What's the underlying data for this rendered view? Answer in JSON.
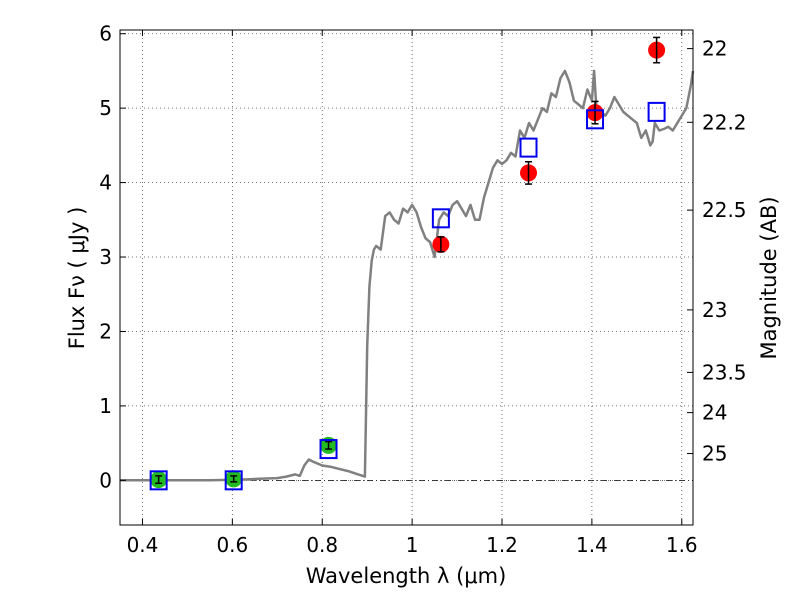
{
  "chart_data": {
    "type": "scatter",
    "xlabel": "Wavelength  λ (μm)",
    "ylabel": "Flux  Fν  ( μJy )",
    "right_ylabel": "Magnitude (AB)",
    "xlim": [
      0.35,
      1.625
    ],
    "ylim": [
      -0.6,
      6.05
    ],
    "grid": true,
    "x_ticks": [
      {
        "value": 0.4,
        "label": "0.4"
      },
      {
        "value": 0.6,
        "label": "0.6"
      },
      {
        "value": 0.8,
        "label": "0.8"
      },
      {
        "value": 1.0,
        "label": "1"
      },
      {
        "value": 1.2,
        "label": "1.2"
      },
      {
        "value": 1.4,
        "label": "1.4"
      },
      {
        "value": 1.6,
        "label": "1.6"
      }
    ],
    "y_ticks": [
      {
        "value": 0,
        "label": "0"
      },
      {
        "value": 1,
        "label": "1"
      },
      {
        "value": 2,
        "label": "2"
      },
      {
        "value": 3,
        "label": "3"
      },
      {
        "value": 4,
        "label": "4"
      },
      {
        "value": 5,
        "label": "5"
      },
      {
        "value": 6,
        "label": "6"
      }
    ],
    "right_ticks": [
      {
        "flux": 5.8,
        "label": "22"
      },
      {
        "flux": 4.81,
        "label": "22.2"
      },
      {
        "flux": 3.63,
        "label": "22.5"
      },
      {
        "flux": 2.29,
        "label": "23"
      },
      {
        "flux": 1.45,
        "label": "23.5"
      },
      {
        "flux": 0.91,
        "label": "24"
      },
      {
        "flux": 0.36,
        "label": "25"
      }
    ],
    "series": [
      {
        "kind": "line",
        "color": "#808080",
        "x": [
          0.35,
          0.45,
          0.55,
          0.62,
          0.66,
          0.7,
          0.72,
          0.74,
          0.75,
          0.76,
          0.77,
          0.78,
          0.8,
          0.82,
          0.84,
          0.86,
          0.88,
          0.895,
          0.9,
          0.905,
          0.91,
          0.915,
          0.92,
          0.93,
          0.94,
          0.95,
          0.96,
          0.97,
          0.98,
          0.99,
          1.0,
          1.01,
          1.02,
          1.03,
          1.04,
          1.05,
          1.06,
          1.07,
          1.08,
          1.09,
          1.1,
          1.11,
          1.12,
          1.13,
          1.14,
          1.15,
          1.16,
          1.17,
          1.18,
          1.19,
          1.2,
          1.21,
          1.22,
          1.23,
          1.24,
          1.25,
          1.26,
          1.27,
          1.28,
          1.29,
          1.3,
          1.31,
          1.32,
          1.33,
          1.34,
          1.35,
          1.36,
          1.37,
          1.38,
          1.39,
          1.4,
          1.405,
          1.41,
          1.42,
          1.43,
          1.44,
          1.45,
          1.46,
          1.47,
          1.48,
          1.49,
          1.5,
          1.51,
          1.52,
          1.53,
          1.535,
          1.54,
          1.55,
          1.56,
          1.57,
          1.58,
          1.59,
          1.6,
          1.61,
          1.62,
          1.625
        ],
        "y": [
          0.0,
          0.0,
          0.0,
          0.01,
          0.02,
          0.03,
          0.05,
          0.08,
          0.06,
          0.2,
          0.28,
          0.25,
          0.2,
          0.18,
          0.15,
          0.12,
          0.08,
          0.05,
          1.8,
          2.6,
          2.95,
          3.1,
          3.15,
          3.1,
          3.55,
          3.6,
          3.5,
          3.45,
          3.65,
          3.6,
          3.7,
          3.6,
          3.4,
          3.25,
          3.2,
          3.0,
          3.5,
          3.6,
          3.55,
          3.7,
          3.75,
          3.65,
          3.55,
          3.7,
          3.5,
          3.5,
          3.8,
          4.0,
          4.2,
          4.3,
          4.25,
          4.3,
          4.4,
          4.35,
          4.7,
          4.6,
          4.8,
          4.7,
          4.85,
          5.0,
          4.95,
          5.2,
          5.15,
          5.4,
          5.5,
          5.35,
          5.1,
          5.05,
          5.0,
          5.25,
          5.1,
          5.5,
          5.0,
          4.95,
          4.9,
          5.0,
          5.15,
          5.05,
          4.95,
          4.9,
          4.85,
          4.8,
          4.6,
          4.7,
          4.5,
          4.55,
          4.8,
          4.7,
          4.72,
          4.75,
          4.7,
          4.8,
          4.9,
          5.0,
          5.3,
          5.5
        ]
      },
      {
        "kind": "points",
        "marker": "circle",
        "color": "#22bb22",
        "x": [
          0.436,
          0.603,
          0.814
        ],
        "y": [
          0.01,
          0.02,
          0.47
        ],
        "err": [
          0.05,
          0.04,
          0.05
        ]
      },
      {
        "kind": "points",
        "marker": "circle",
        "color": "#ff0000",
        "x": [
          1.064,
          1.259,
          1.407,
          1.544
        ],
        "y": [
          3.17,
          4.13,
          4.94,
          5.78
        ],
        "err": [
          0.1,
          0.15,
          0.15,
          0.17
        ]
      },
      {
        "kind": "points",
        "marker": "open-square",
        "color": "#0000ee",
        "x": [
          0.436,
          0.603,
          0.814,
          1.064,
          1.259,
          1.407,
          1.544
        ],
        "y": [
          0.0,
          0.0,
          0.42,
          3.52,
          4.47,
          4.85,
          4.95
        ]
      }
    ]
  }
}
